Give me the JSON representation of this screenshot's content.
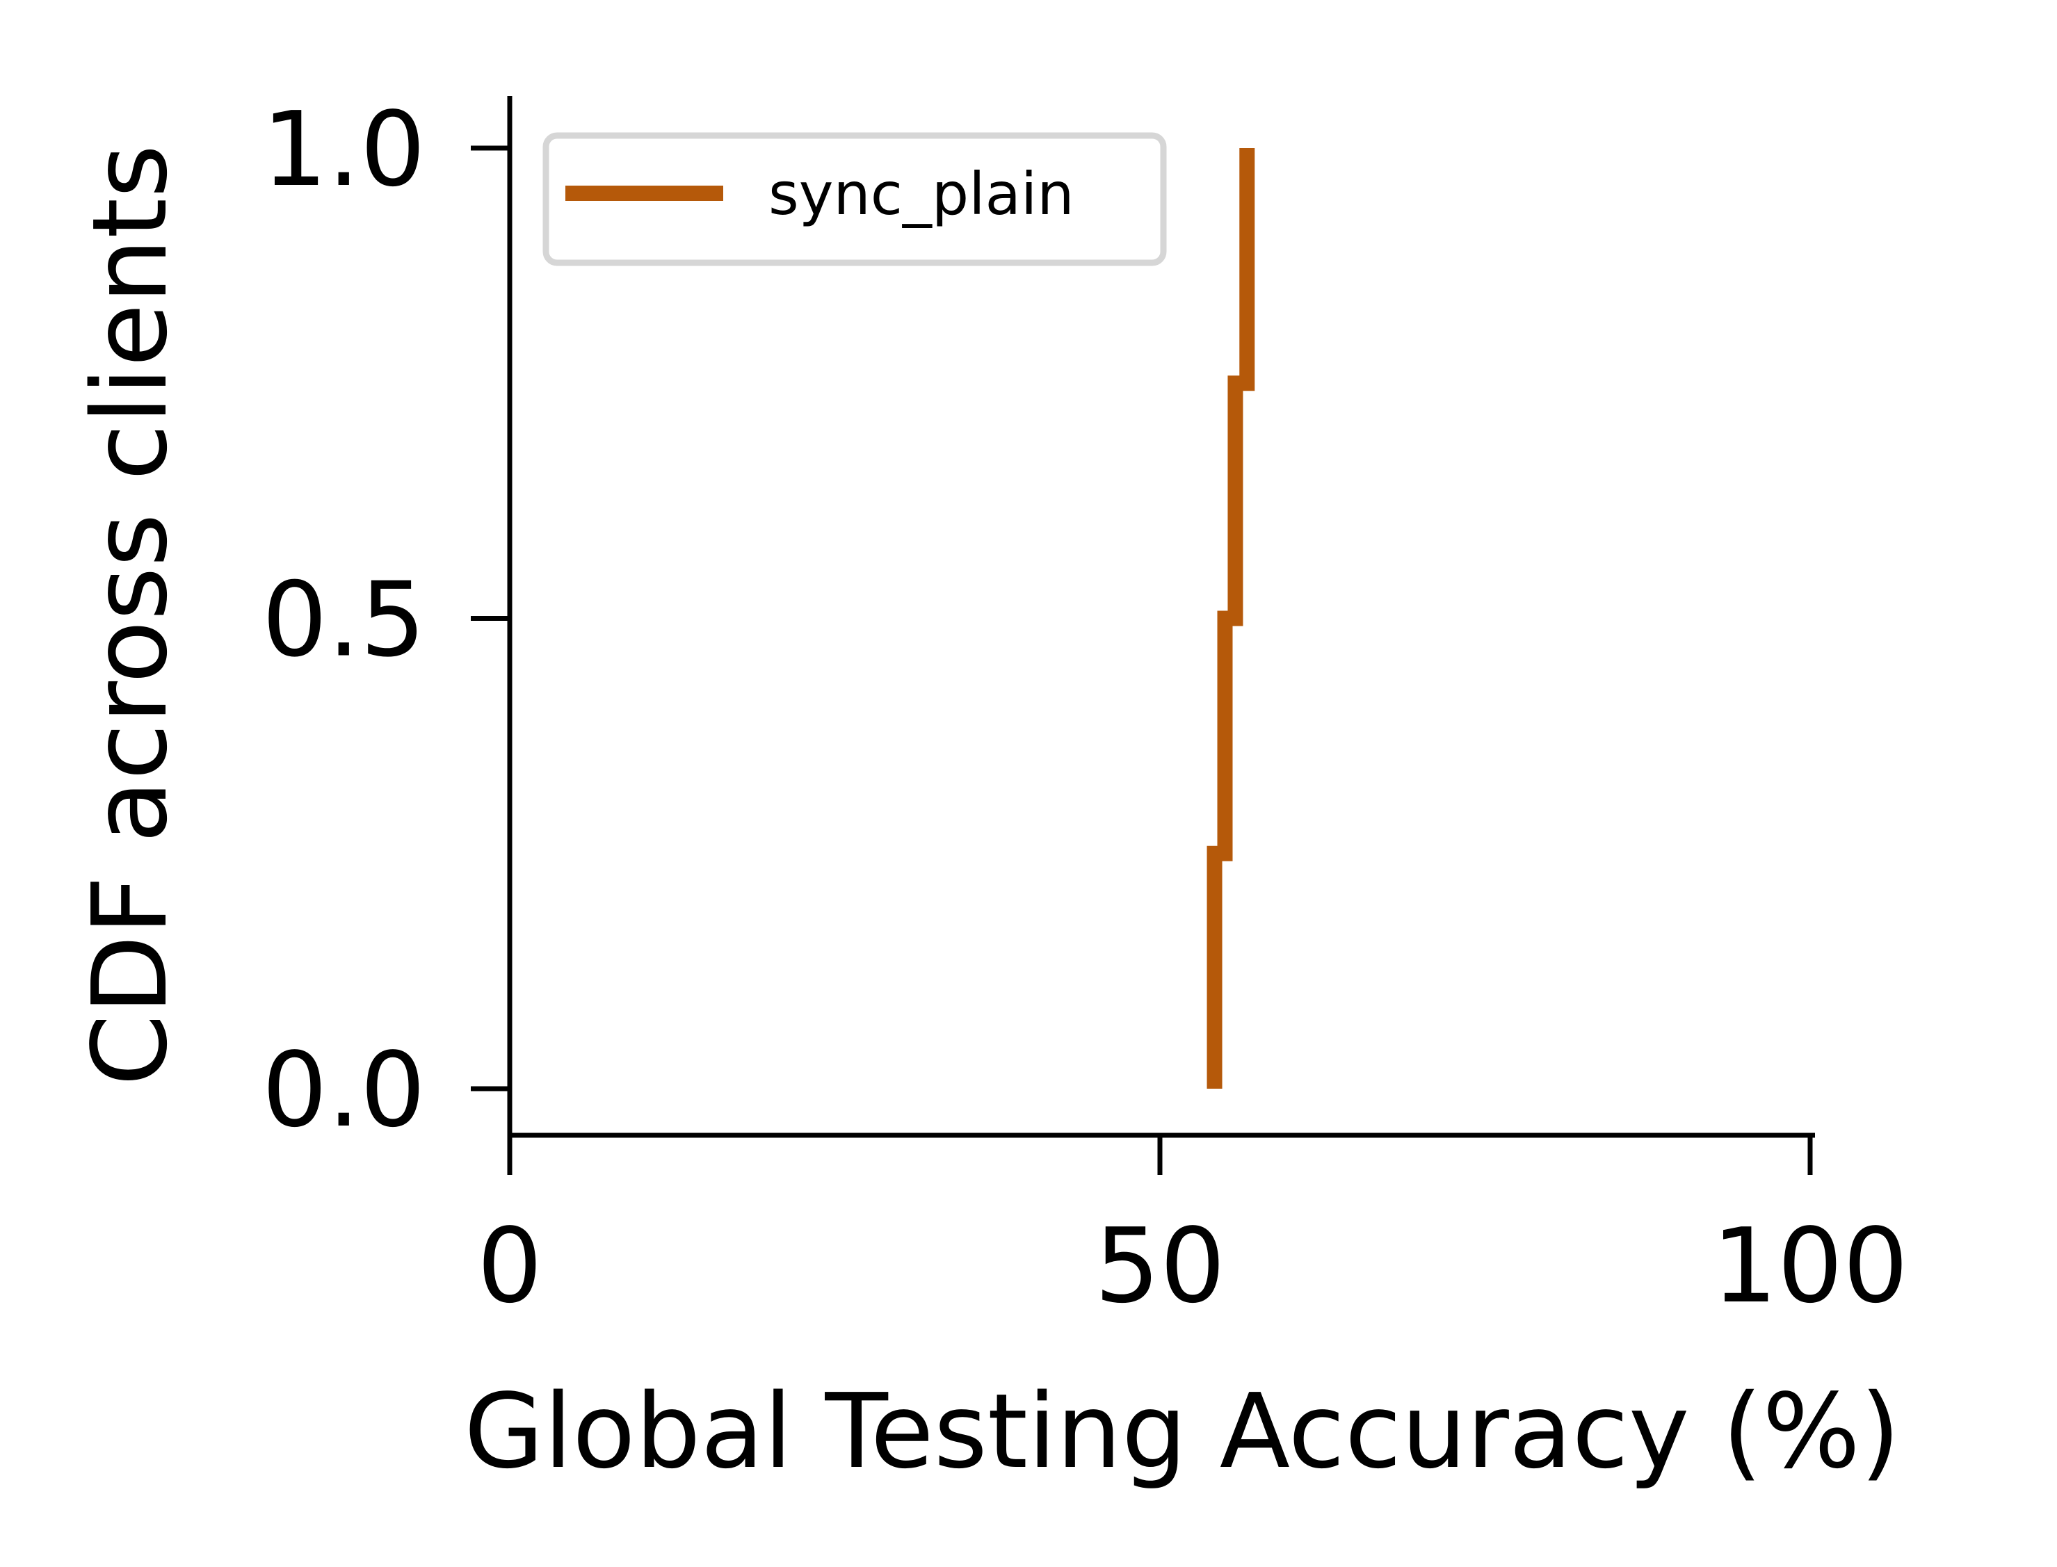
{
  "chart_data": {
    "type": "line",
    "title": "",
    "xlabel": "Global Testing Accuracy (%)",
    "ylabel": "CDF across clients",
    "xlim": [
      0,
      100
    ],
    "ylim": [
      -0.05,
      1.05
    ],
    "x_ticks": [
      0,
      50,
      100
    ],
    "x_tick_labels": [
      "0",
      "50",
      "100"
    ],
    "y_ticks": [
      0.0,
      0.5,
      1.0
    ],
    "y_tick_labels": [
      "0.0",
      "0.5",
      "1.0"
    ],
    "grid": false,
    "legend_position": "top-left",
    "step": true,
    "series": [
      {
        "name": "sync_plain",
        "color": "#b5590a",
        "x": [
          54.2,
          55.0,
          55.8,
          56.7
        ],
        "y": [
          0.25,
          0.5,
          0.75,
          1.0
        ]
      }
    ]
  }
}
